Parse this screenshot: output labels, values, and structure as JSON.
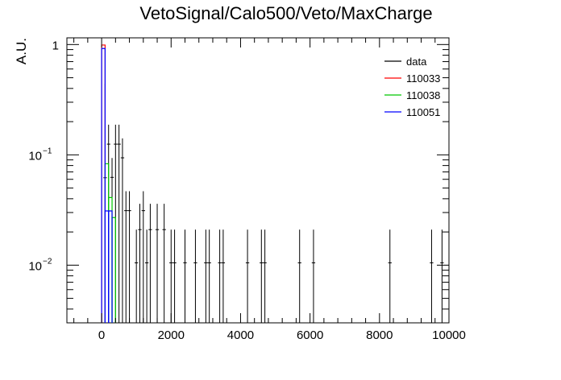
{
  "chart_data": {
    "type": "histogram",
    "title": "VetoSignal/Calo500/Veto/MaxCharge",
    "xlabel": "",
    "ylabel": "A.U.",
    "xlim": [
      -1000,
      10000
    ],
    "ylim": [
      0.003,
      1.15
    ],
    "yscale": "log",
    "grid": false,
    "legend_position": "top-right",
    "x_ticks": [
      0,
      2000,
      4000,
      6000,
      8000,
      10000
    ],
    "x_tick_labels": [
      "0",
      "2000",
      "4000",
      "6000",
      "8000",
      "10000"
    ],
    "y_tick_labels": [
      {
        "base": "10",
        "exp": "−2",
        "value": 0.01
      },
      {
        "base": "10",
        "exp": "−1",
        "value": 0.1
      },
      {
        "base": "1",
        "exp": "",
        "value": 1
      }
    ],
    "series": [
      {
        "name": "data",
        "kind": "points",
        "color": "#000000",
        "points": [
          {
            "x": 100,
            "y": 0.062,
            "up": 0.38
          },
          {
            "x": 200,
            "y": 0.125,
            "up": 0.0625
          },
          {
            "x": 300,
            "y": 0.0625,
            "up": 0.0312
          },
          {
            "x": 400,
            "y": 0.125,
            "up": 0.0625
          },
          {
            "x": 500,
            "y": 0.125,
            "up": 0.0625
          },
          {
            "x": 600,
            "y": 0.094,
            "up": 0.047
          },
          {
            "x": 700,
            "y": 0.0312,
            "up": 0.0156
          },
          {
            "x": 800,
            "y": 0.0312,
            "up": 0.0156
          },
          {
            "x": 1000,
            "y": 0.0105,
            "up": 0.0105
          },
          {
            "x": 1100,
            "y": 0.021,
            "up": 0.015
          },
          {
            "x": 1200,
            "y": 0.0312,
            "up": 0.0156
          },
          {
            "x": 1300,
            "y": 0.0105,
            "up": 0.0105
          },
          {
            "x": 1400,
            "y": 0.021,
            "up": 0.015
          },
          {
            "x": 1600,
            "y": 0.021,
            "up": 0.015
          },
          {
            "x": 1800,
            "y": 0.021,
            "up": 0.015
          },
          {
            "x": 2000,
            "y": 0.0105,
            "up": 0.0105
          },
          {
            "x": 2100,
            "y": 0.0105,
            "up": 0.0105
          },
          {
            "x": 2400,
            "y": 0.0105,
            "up": 0.0105
          },
          {
            "x": 2700,
            "y": 0.0105,
            "up": 0.0105
          },
          {
            "x": 3000,
            "y": 0.0105,
            "up": 0.0105
          },
          {
            "x": 3100,
            "y": 0.0105,
            "up": 0.0105
          },
          {
            "x": 3400,
            "y": 0.0105,
            "up": 0.0105
          },
          {
            "x": 3500,
            "y": 0.0105,
            "up": 0.0105
          },
          {
            "x": 4200,
            "y": 0.0105,
            "up": 0.0105
          },
          {
            "x": 4600,
            "y": 0.0105,
            "up": 0.0105
          },
          {
            "x": 4700,
            "y": 0.0105,
            "up": 0.0105
          },
          {
            "x": 5700,
            "y": 0.0105,
            "up": 0.0105
          },
          {
            "x": 6100,
            "y": 0.0105,
            "up": 0.0105
          },
          {
            "x": 8300,
            "y": 0.0105,
            "up": 0.0105
          },
          {
            "x": 9500,
            "y": 0.0105,
            "up": 0.0105
          },
          {
            "x": 9800,
            "y": 0.0105,
            "up": 0.0105
          }
        ]
      },
      {
        "name": "110033",
        "kind": "step",
        "color": "#ff0000",
        "bins": [
          {
            "x0": 0,
            "x1": 100,
            "y": 0.99
          }
        ]
      },
      {
        "name": "110038",
        "kind": "step",
        "color": "#00c800",
        "bins": [
          {
            "x0": 100,
            "x1": 200,
            "y": 0.083
          },
          {
            "x0": 200,
            "x1": 300,
            "y": 0.041
          },
          {
            "x0": 300,
            "x1": 400,
            "y": 0.027
          }
        ]
      },
      {
        "name": "110051",
        "kind": "step",
        "color": "#0000ff",
        "bins": [
          {
            "x0": 0,
            "x1": 100,
            "y": 0.92
          },
          {
            "x0": 100,
            "x1": 200,
            "y": 0.031
          },
          {
            "x0": 200,
            "x1": 300,
            "y": 0.031
          }
        ]
      }
    ]
  }
}
